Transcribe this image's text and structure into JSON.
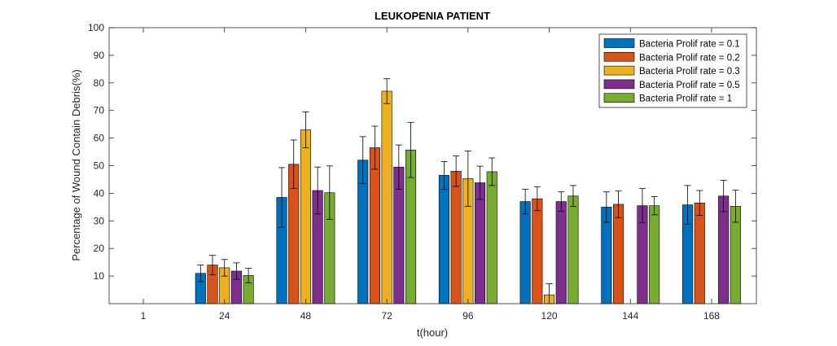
{
  "chart_data": {
    "type": "bar",
    "title": "LEUKOPENIA PATIENT",
    "xlabel": "t(hour)",
    "ylabel": "Percentage of Wound Contain Debris(%)",
    "ylim": [
      0,
      100
    ],
    "yticks": [
      10,
      20,
      30,
      40,
      50,
      60,
      70,
      80,
      90,
      100
    ],
    "categories": [
      "1",
      "24",
      "48",
      "72",
      "96",
      "120",
      "144",
      "168"
    ],
    "legend_position": "top-right",
    "grid": false,
    "series": [
      {
        "name": "Bacteria Prolif rate = 0.1",
        "color": "#0072BD",
        "values": [
          0,
          11,
          38.5,
          52,
          46.5,
          37,
          35,
          35.8
        ],
        "errors": [
          0,
          3,
          10.8,
          8.5,
          5,
          4.5,
          5.5,
          7
        ]
      },
      {
        "name": "Bacteria Prolif rate = 0.2",
        "color": "#D95319",
        "values": [
          0,
          14,
          50.5,
          56.5,
          48,
          38,
          36,
          36.5
        ],
        "errors": [
          0,
          3.5,
          8.8,
          7.8,
          5.5,
          4.3,
          4.8,
          4.5
        ]
      },
      {
        "name": "Bacteria Prolif rate = 0.3",
        "color": "#EDB120",
        "values": [
          0,
          13,
          63,
          77,
          45.3,
          3.2,
          0,
          0
        ],
        "errors": [
          0,
          3,
          6.5,
          4.5,
          10,
          4,
          0,
          0
        ]
      },
      {
        "name": "Bacteria Prolif rate = 0.5",
        "color": "#7E2F8E",
        "values": [
          0,
          11.8,
          41,
          49.5,
          43.8,
          37,
          35.5,
          39
        ],
        "errors": [
          0,
          3,
          8.5,
          8,
          6,
          3.5,
          6.2,
          5.7
        ]
      },
      {
        "name": "Bacteria Prolif rate = 1",
        "color": "#77AC30",
        "values": [
          0,
          10.2,
          40.2,
          55.7,
          47.8,
          39,
          35.5,
          35.3
        ],
        "errors": [
          0,
          2.6,
          9.7,
          10,
          5,
          3.8,
          3.3,
          5.8
        ]
      }
    ]
  }
}
